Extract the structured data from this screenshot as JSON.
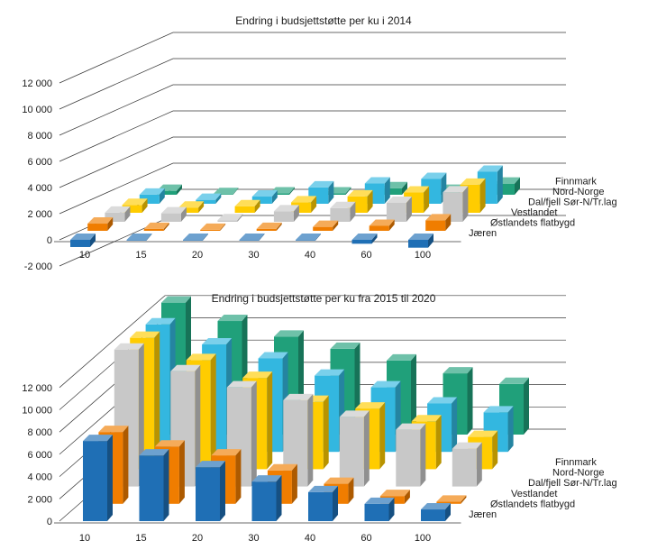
{
  "chart_data": [
    {
      "type": "bar",
      "subtype": "3d-column",
      "title": "Endring i budsjettstøtte per ku i 2014",
      "categories": [
        "10",
        "15",
        "20",
        "30",
        "40",
        "60",
        "100"
      ],
      "y_ticks": [
        "-2 000",
        "0",
        "2 000",
        "4 000",
        "6 000",
        "8 000",
        "10 000",
        "12 000"
      ],
      "ylim": [
        -2000,
        12000
      ],
      "series": [
        {
          "name": "Jæren",
          "color": "#1f6fb5",
          "values": [
            -550,
            -50,
            -50,
            -50,
            -50,
            -300,
            -600
          ]
        },
        {
          "name": "Østlandets flatbygd",
          "color": "#f07d00",
          "values": [
            550,
            150,
            80,
            150,
            300,
            380,
            800
          ]
        },
        {
          "name": "Vestlandet",
          "color": "#c8c8c8",
          "values": [
            700,
            650,
            120,
            800,
            1050,
            1450,
            2250
          ]
        },
        {
          "name": "Dal/fjell Sør-N/Tr.lag",
          "color": "#ffcc00",
          "values": [
            600,
            400,
            500,
            800,
            1250,
            1550,
            2150
          ]
        },
        {
          "name": "Nord-Norge",
          "color": "#33b7e0",
          "values": [
            700,
            300,
            550,
            1250,
            1550,
            1900,
            2450
          ]
        },
        {
          "name": "Finnmark",
          "color": "#20a07a",
          "values": [
            300,
            50,
            100,
            100,
            500,
            300,
            850
          ]
        }
      ]
    },
    {
      "type": "bar",
      "subtype": "3d-column",
      "title": "Endring i budsjettstøtte per ku fra 2015 til 2020",
      "categories": [
        "10",
        "15",
        "20",
        "30",
        "40",
        "60",
        "100"
      ],
      "y_ticks": [
        "0",
        "2 000",
        "4 000",
        "6 000",
        "8 000",
        "10 000",
        "12 000"
      ],
      "ylim": [
        0,
        12000
      ],
      "series": [
        {
          "name": "Jæren",
          "color": "#1f6fb5",
          "values": [
            7200,
            5900,
            4850,
            3550,
            2600,
            1550,
            1050
          ]
        },
        {
          "name": "Østlandets flatbygd",
          "color": "#f07d00",
          "values": [
            6450,
            5150,
            4350,
            3000,
            1800,
            700,
            200
          ]
        },
        {
          "name": "Vestlandet",
          "color": "#c8c8c8",
          "values": [
            12300,
            10350,
            8900,
            7750,
            6250,
            5100,
            3400
          ]
        },
        {
          "name": "Dal/fjell Sør-N/Tr.lag",
          "color": "#ffcc00",
          "values": [
            11800,
            9800,
            8200,
            6050,
            5450,
            4300,
            2900
          ]
        },
        {
          "name": "Nord-Norge",
          "color": "#33b7e0",
          "values": [
            11450,
            9650,
            8400,
            6850,
            5800,
            4350,
            3550
          ]
        },
        {
          "name": "Finnmark",
          "color": "#20a07a",
          "values": [
            11850,
            10200,
            8800,
            7700,
            6650,
            5500,
            4550
          ]
        }
      ]
    }
  ]
}
